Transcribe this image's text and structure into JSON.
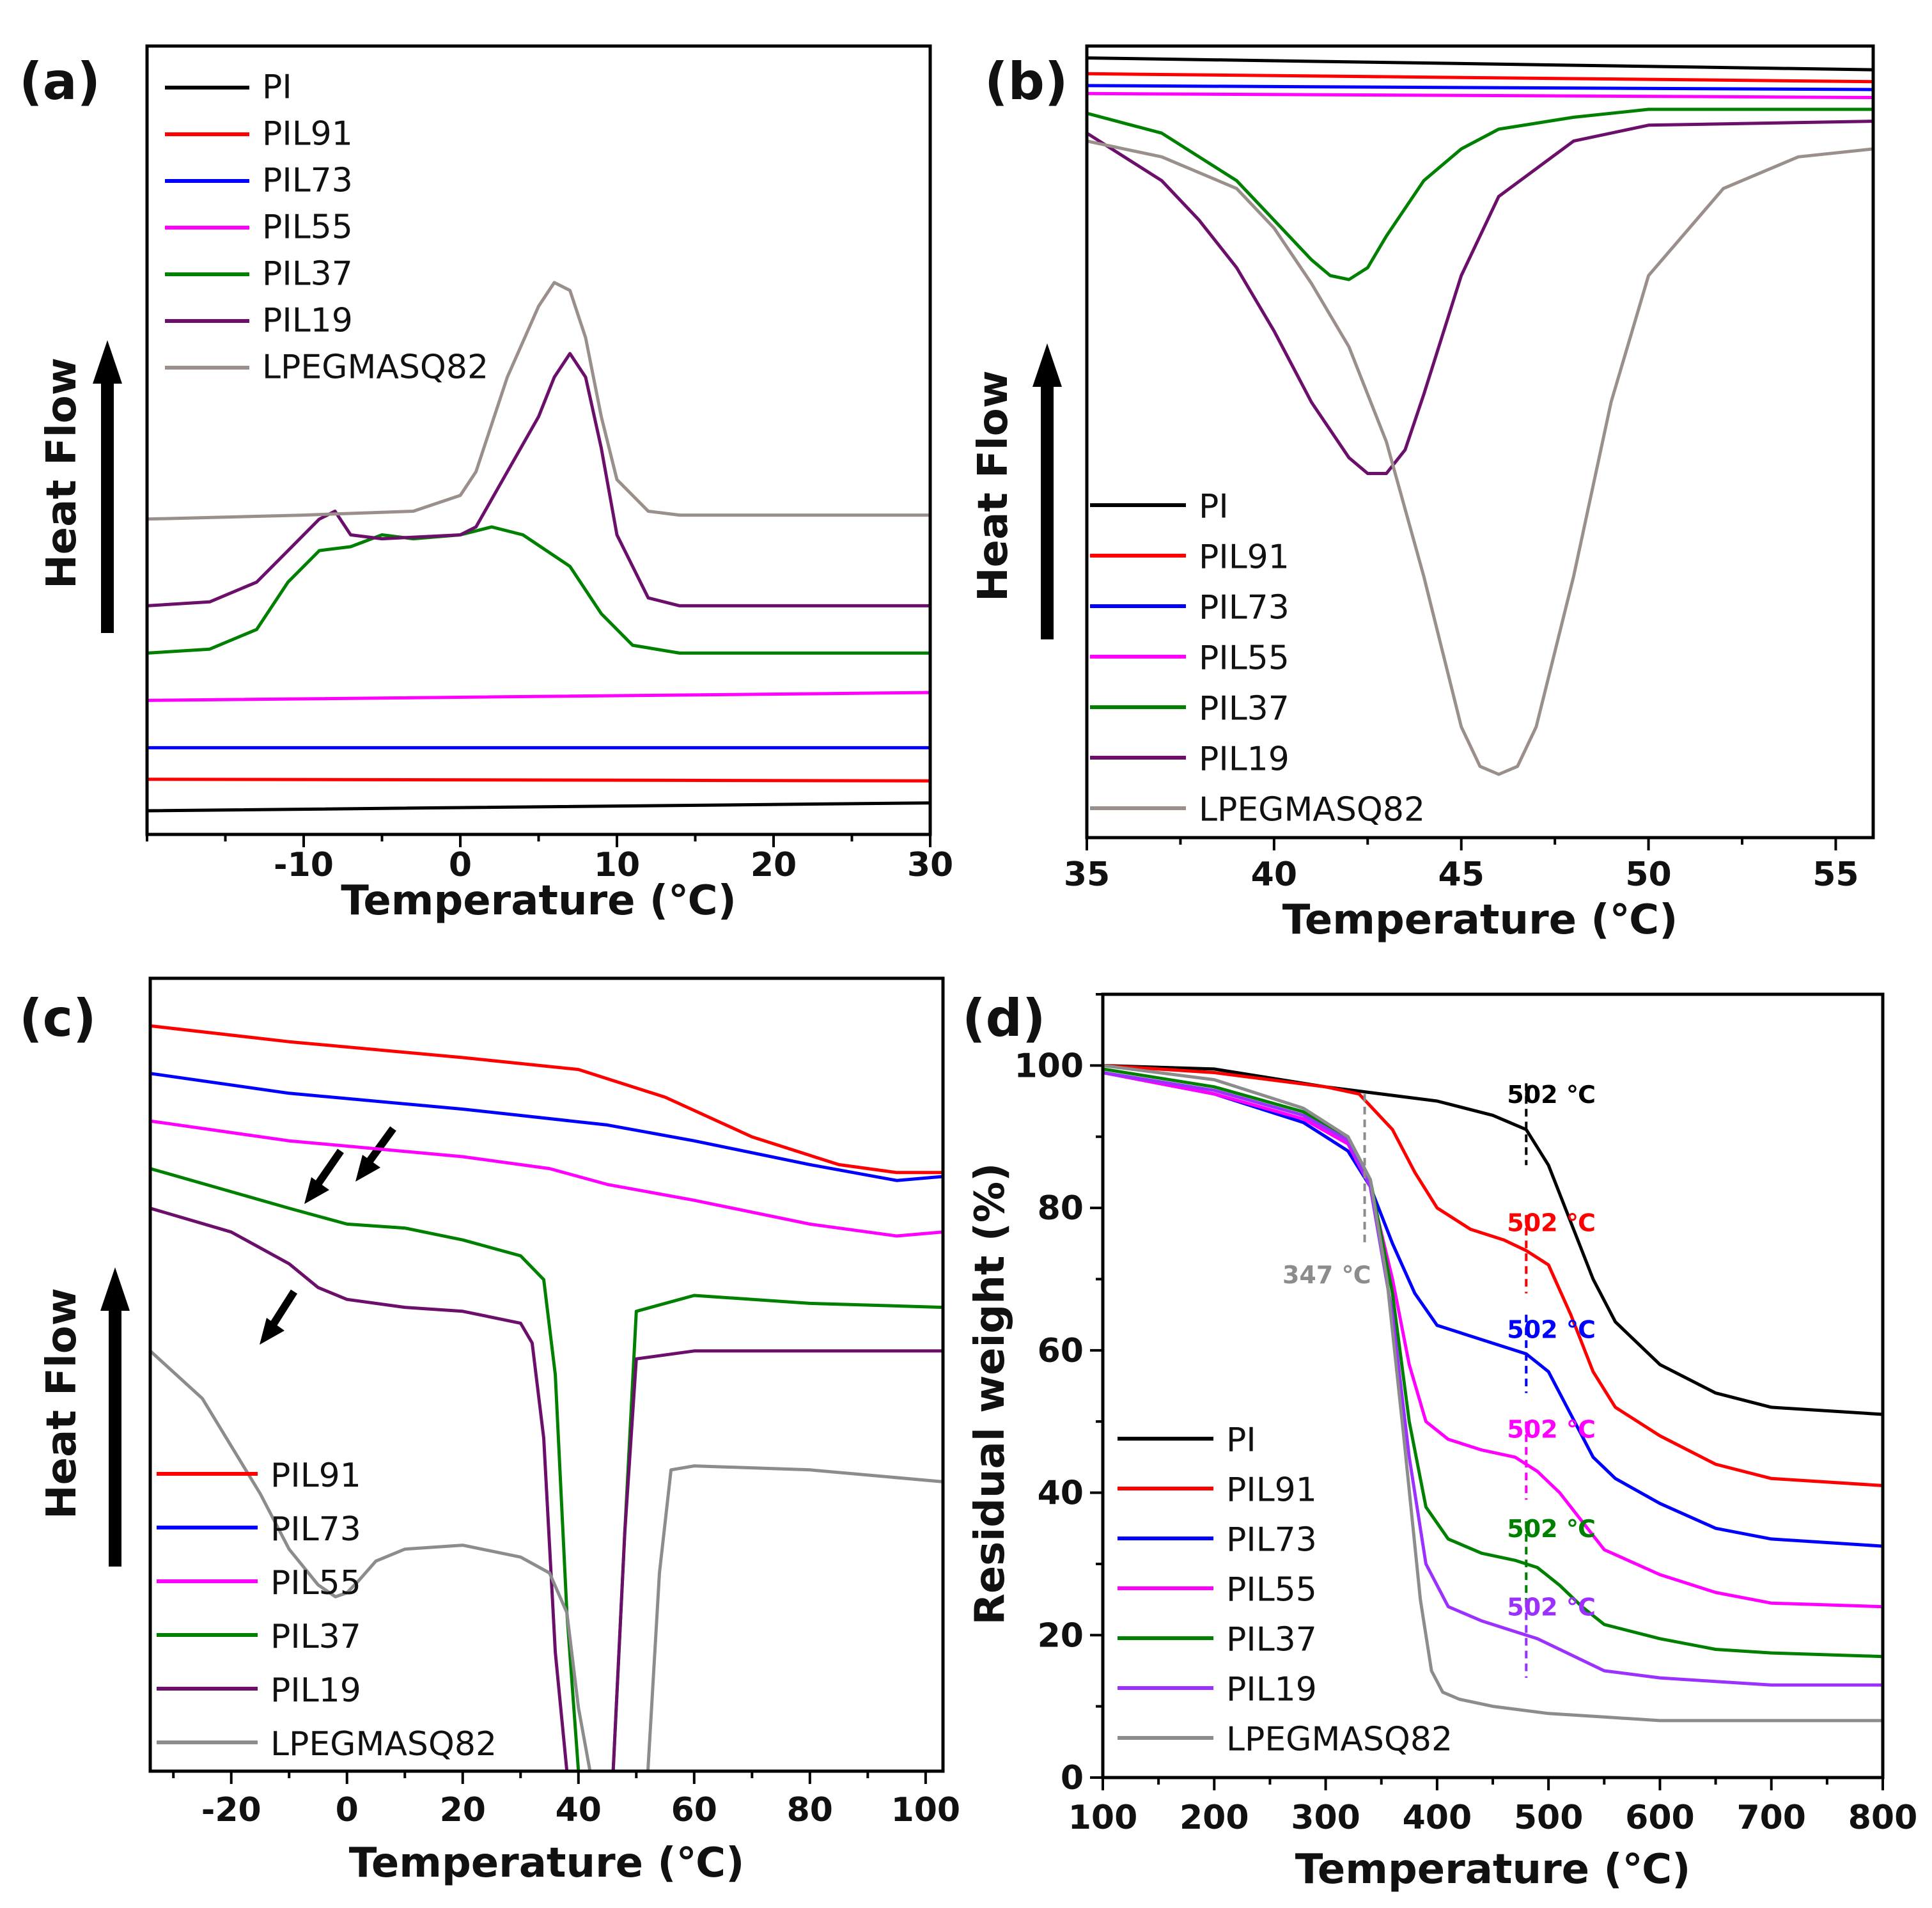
{
  "chart_data": [
    {
      "panel": "(a)",
      "type": "line",
      "xlabel": "Temperature (℃)",
      "ylabel": "Heat Flow",
      "xlim": [
        -20,
        30
      ],
      "ylim": [
        0,
        100
      ],
      "xticks": [
        -10,
        0,
        10,
        20,
        30
      ],
      "x_tick_labels": [
        "-10",
        "0",
        "10",
        "20",
        "30"
      ],
      "yaxis_ticks_shown": false,
      "legend": "top-left",
      "ylabel_arrow": "up",
      "series": [
        {
          "name": "PI",
          "color": "#000000",
          "x": [
            -20,
            30
          ],
          "y": [
            3,
            4
          ]
        },
        {
          "name": "PIL91",
          "color": "#ff0000",
          "x": [
            -20,
            30
          ],
          "y": [
            7,
            6.8
          ]
        },
        {
          "name": "PIL73",
          "color": "#0000ff",
          "x": [
            -20,
            30
          ],
          "y": [
            11,
            11
          ]
        },
        {
          "name": "PIL55",
          "color": "#ff00ff",
          "x": [
            -20,
            30
          ],
          "y": [
            17,
            18
          ]
        },
        {
          "name": "PIL37",
          "color": "#008000",
          "x": [
            -20,
            -16,
            -13,
            -11,
            -9,
            -7,
            -5,
            -3,
            0,
            2,
            4,
            7,
            9,
            11,
            14,
            20,
            30
          ],
          "y": [
            23,
            23.5,
            26,
            32,
            36,
            36.5,
            38,
            37.5,
            38,
            39,
            38,
            34,
            28,
            24,
            23,
            23,
            23
          ]
        },
        {
          "name": "PIL19",
          "color": "#6b0f6b",
          "x": [
            -20,
            -16,
            -13,
            -11,
            -9,
            -8,
            -7,
            -5,
            0,
            1,
            3,
            5,
            6,
            7,
            8,
            9,
            10,
            12,
            14,
            20,
            30
          ],
          "y": [
            29,
            29.5,
            32,
            36,
            40,
            41,
            38,
            37.5,
            38,
            39,
            46,
            53,
            58,
            61,
            58,
            49,
            38,
            30,
            29,
            29,
            29
          ]
        },
        {
          "name": "LPEGMASQ82",
          "color": "#9a8f8a",
          "x": [
            -20,
            -10,
            -3,
            0,
            1,
            3,
            5,
            6,
            7,
            8,
            9,
            10,
            12,
            14,
            20,
            30
          ],
          "y": [
            40,
            40.5,
            41,
            43,
            46,
            58,
            67,
            70,
            69,
            63,
            53,
            45,
            41,
            40.5,
            40.5,
            40.5
          ]
        }
      ]
    },
    {
      "panel": "(b)",
      "type": "line",
      "xlabel": "Temperature (℃)",
      "ylabel": "Heat Flow",
      "xlim": [
        35,
        56
      ],
      "ylim": [
        0,
        100
      ],
      "xticks": [
        35,
        40,
        45,
        50,
        55
      ],
      "x_tick_labels": [
        "35",
        "40",
        "45",
        "50",
        "55"
      ],
      "yaxis_ticks_shown": false,
      "legend": "bottom-left",
      "ylabel_arrow": "up",
      "series": [
        {
          "name": "PI",
          "color": "#000000",
          "x": [
            35,
            56
          ],
          "y": [
            98.5,
            97
          ]
        },
        {
          "name": "PIL91",
          "color": "#ff0000",
          "x": [
            35,
            56
          ],
          "y": [
            96.5,
            95.5
          ]
        },
        {
          "name": "PIL73",
          "color": "#0000ff",
          "x": [
            35,
            56
          ],
          "y": [
            95,
            94.5
          ]
        },
        {
          "name": "PIL55",
          "color": "#ff00ff",
          "x": [
            35,
            56
          ],
          "y": [
            94,
            93.5
          ]
        },
        {
          "name": "PIL37",
          "color": "#008000",
          "x": [
            35,
            37,
            39,
            40,
            41,
            41.5,
            42,
            42.5,
            43,
            44,
            45,
            46,
            48,
            50,
            56
          ],
          "y": [
            91.5,
            89,
            83,
            78,
            73,
            71,
            70.5,
            72,
            76,
            83,
            87,
            89.5,
            91,
            92,
            92
          ]
        },
        {
          "name": "PIL19",
          "color": "#6b0f6b",
          "x": [
            35,
            37,
            38,
            39,
            40,
            41,
            42,
            42.5,
            43,
            43.5,
            44,
            45,
            46,
            48,
            50,
            56
          ],
          "y": [
            89,
            83,
            78,
            72,
            64,
            55,
            48,
            46,
            46,
            49,
            56,
            71,
            81,
            88,
            90,
            90.5
          ]
        },
        {
          "name": "LPEGMASQ82",
          "color": "#9a8f8a",
          "x": [
            35,
            37,
            39,
            40,
            41,
            42,
            43,
            44,
            45,
            45.5,
            46,
            46.5,
            47,
            48,
            49,
            50,
            52,
            54,
            56
          ],
          "y": [
            88,
            86,
            82,
            77,
            70,
            62,
            50,
            33,
            14,
            9,
            8,
            9,
            14,
            33,
            55,
            71,
            82,
            86,
            87
          ]
        }
      ]
    },
    {
      "panel": "(c)",
      "type": "line",
      "xlabel": "Temperature (℃)",
      "ylabel": "Heat Flow",
      "xlim": [
        -34,
        103
      ],
      "ylim": [
        0,
        100
      ],
      "xticks": [
        -20,
        0,
        20,
        40,
        60,
        80,
        100
      ],
      "x_tick_labels": [
        "-20",
        "0",
        "20",
        "40",
        "60",
        "80",
        "100"
      ],
      "yaxis_ticks_shown": false,
      "legend": "bottom-left",
      "ylabel_arrow": "up",
      "series": [
        {
          "name": "PIL91",
          "color": "#ff0000",
          "x": [
            -34,
            -10,
            20,
            40,
            55,
            70,
            85,
            95,
            103
          ],
          "y": [
            94,
            92,
            90,
            88.5,
            85,
            80,
            76.5,
            75.5,
            75.5
          ]
        },
        {
          "name": "PIL73",
          "color": "#0000ff",
          "x": [
            -34,
            -10,
            20,
            45,
            60,
            80,
            95,
            103
          ],
          "y": [
            88,
            85.5,
            83.5,
            81.5,
            79.5,
            76.5,
            74.5,
            75
          ]
        },
        {
          "name": "PIL55",
          "color": "#ff00ff",
          "x": [
            -34,
            -10,
            20,
            35,
            45,
            60,
            80,
            95,
            103
          ],
          "y": [
            82,
            79.5,
            77.5,
            76,
            74,
            72,
            69,
            67.5,
            68
          ]
        },
        {
          "name": "PIL37",
          "color": "#008000",
          "x": [
            -34,
            -10,
            0,
            10,
            20,
            30,
            34,
            36,
            38,
            40,
            42,
            44,
            46,
            48,
            50,
            60,
            80,
            103
          ],
          "y": [
            76,
            71,
            69,
            68.5,
            67,
            65,
            62,
            50,
            20,
            0,
            0,
            0,
            0,
            30,
            58,
            60,
            59,
            58.5
          ]
        },
        {
          "name": "PIL19",
          "color": "#6b0f6b",
          "x": [
            -34,
            -20,
            -10,
            -5,
            0,
            10,
            20,
            30,
            32,
            34,
            36,
            38,
            40,
            42,
            44,
            46,
            48,
            50,
            60,
            80,
            103
          ],
          "y": [
            71,
            68,
            64,
            61,
            59.5,
            58.5,
            58,
            56.5,
            54,
            42,
            15,
            0,
            0,
            0,
            0,
            0,
            30,
            52,
            53,
            53,
            53
          ]
        },
        {
          "name": "LPEGMASQ82",
          "color": "#8c8c8c",
          "x": [
            -34,
            -25,
            -20,
            -15,
            -10,
            -5,
            -2,
            0,
            2,
            5,
            10,
            20,
            30,
            35,
            38,
            40,
            42,
            44,
            46,
            48,
            50,
            52,
            54,
            56,
            60,
            80,
            103
          ],
          "y": [
            53,
            47,
            41,
            35,
            28,
            23.5,
            22,
            22.5,
            24,
            26.5,
            28,
            28.5,
            27,
            25,
            20,
            8,
            0,
            0,
            0,
            0,
            0,
            0,
            25,
            38,
            38.5,
            38,
            36.5
          ]
        }
      ]
    },
    {
      "panel": "(d)",
      "type": "line",
      "xlabel": "Temperature (℃)",
      "ylabel": "Residual weight (%)",
      "xlim": [
        100,
        800
      ],
      "ylim": [
        0,
        110
      ],
      "xticks": [
        100,
        200,
        300,
        400,
        500,
        600,
        700,
        800
      ],
      "x_tick_labels": [
        "100",
        "200",
        "300",
        "400",
        "500",
        "600",
        "700",
        "800"
      ],
      "yticks": [
        0,
        20,
        40,
        60,
        80,
        100
      ],
      "y_tick_labels": [
        "0",
        "20",
        "40",
        "60",
        "80",
        "100"
      ],
      "legend": "bottom-left",
      "series": [
        {
          "name": "PI",
          "color": "#000000",
          "x": [
            100,
            200,
            300,
            400,
            450,
            480,
            500,
            520,
            540,
            560,
            600,
            650,
            700,
            800
          ],
          "y": [
            100,
            99.5,
            97,
            95,
            93,
            91,
            86,
            78,
            70,
            64,
            58,
            54,
            52,
            51
          ]
        },
        {
          "name": "PIL91",
          "color": "#ff0000",
          "x": [
            100,
            200,
            300,
            330,
            360,
            380,
            400,
            430,
            460,
            480,
            500,
            520,
            540,
            560,
            600,
            650,
            700,
            800
          ],
          "y": [
            100,
            99,
            97,
            96,
            91,
            85,
            80,
            77,
            75.5,
            74,
            72,
            65,
            57,
            52,
            48,
            44,
            42,
            41
          ]
        },
        {
          "name": "PIL73",
          "color": "#0000ff",
          "x": [
            100,
            200,
            280,
            320,
            340,
            360,
            380,
            400,
            430,
            460,
            480,
            500,
            520,
            540,
            560,
            600,
            650,
            700,
            800
          ],
          "y": [
            99,
            96,
            92,
            88,
            83,
            75,
            68,
            63.5,
            62,
            60.5,
            59.5,
            57,
            51,
            45,
            42,
            38.5,
            35,
            33.5,
            32.5
          ]
        },
        {
          "name": "PIL55",
          "color": "#ff00ff",
          "x": [
            100,
            200,
            280,
            320,
            340,
            360,
            375,
            390,
            410,
            440,
            470,
            490,
            510,
            530,
            550,
            600,
            650,
            700,
            800
          ],
          "y": [
            99,
            96,
            92.5,
            89,
            83,
            70,
            58,
            50,
            47.5,
            46,
            45,
            43,
            40,
            36,
            32,
            28.5,
            26,
            24.5,
            24
          ]
        },
        {
          "name": "PIL37",
          "color": "#008000",
          "x": [
            100,
            200,
            280,
            320,
            340,
            360,
            375,
            390,
            410,
            440,
            470,
            490,
            510,
            530,
            550,
            600,
            650,
            700,
            800
          ],
          "y": [
            99.5,
            97,
            93.5,
            90,
            84,
            68,
            50,
            38,
            33.5,
            31.5,
            30.5,
            29.5,
            27,
            24,
            21.5,
            19.5,
            18,
            17.5,
            17
          ]
        },
        {
          "name": "PIL19",
          "color": "#9b30ff",
          "x": [
            100,
            200,
            280,
            320,
            340,
            360,
            375,
            390,
            410,
            440,
            470,
            490,
            510,
            530,
            550,
            600,
            650,
            700,
            800
          ],
          "y": [
            99,
            96.5,
            93,
            89.5,
            83,
            65,
            45,
            30,
            24,
            22,
            20.5,
            19.5,
            18,
            16.5,
            15,
            14,
            13.5,
            13,
            13
          ]
        },
        {
          "name": "LPEGMASQ82",
          "color": "#8c8c8c",
          "x": [
            100,
            200,
            280,
            320,
            340,
            355,
            370,
            385,
            395,
            405,
            420,
            450,
            500,
            550,
            600,
            700,
            800
          ],
          "y": [
            100,
            98,
            94,
            90,
            84,
            70,
            48,
            25,
            15,
            12,
            11,
            10,
            9,
            8.5,
            8,
            8,
            8
          ]
        }
      ],
      "annotations": [
        {
          "text": "502 ℃",
          "x": 480,
          "y_from": 86,
          "y_to": 97.5,
          "label_y": 96,
          "color": "#000000"
        },
        {
          "text": "502 ℃",
          "x": 480,
          "y_from": 68,
          "y_to": 79,
          "label_y": 78,
          "color": "#ff0000"
        },
        {
          "text": "502 ℃",
          "x": 480,
          "y_from": 54,
          "y_to": 65,
          "label_y": 63,
          "color": "#0000ff"
        },
        {
          "text": "502 ℃",
          "x": 480,
          "y_from": 39,
          "y_to": 50,
          "label_y": 49,
          "color": "#ff00ff"
        },
        {
          "text": "502 ℃",
          "x": 480,
          "y_from": 25,
          "y_to": 36,
          "label_y": 35,
          "color": "#008000"
        },
        {
          "text": "502 ℃",
          "x": 480,
          "y_from": 14,
          "y_to": 25,
          "label_y": 24,
          "color": "#9b30ff"
        },
        {
          "text": "347 ℃",
          "x": 335,
          "y_from": 75,
          "y_to": 96,
          "label_y": 73,
          "color": "#8c8c8c"
        }
      ]
    }
  ]
}
